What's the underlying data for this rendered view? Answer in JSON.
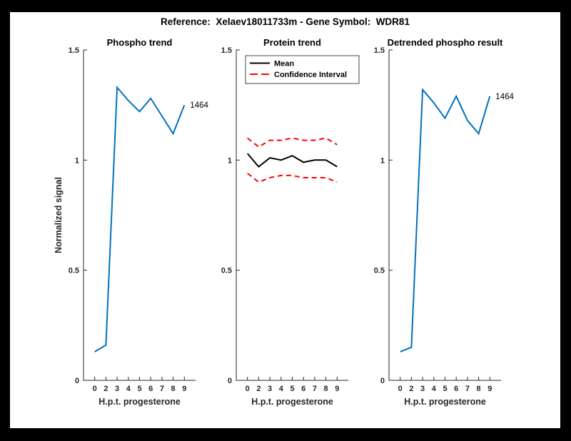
{
  "figure": {
    "title": "Reference:  Xelaev18011733m - Gene Symbol:  WDR81",
    "background_color": "#ffffff",
    "frame_color": "#000000",
    "axis_color": "#262626",
    "annotation_label": "1464"
  },
  "chart_data": [
    {
      "type": "line",
      "title": "Phospho trend",
      "xlabel": "H.p.t. progesterone",
      "ylabel": "Normalized signal",
      "x_tick_labels": [
        "0",
        "2",
        "3",
        "4",
        "5",
        "6",
        "7",
        "8",
        "9"
      ],
      "y_ticks": [
        "0",
        "0.5",
        "1",
        "1.5"
      ],
      "ylim": [
        0,
        1.5
      ],
      "grid": false,
      "series": [
        {
          "name": "phospho-signal",
          "color": "#0072BD",
          "style": "solid",
          "values": [
            0.13,
            0.16,
            1.33,
            1.27,
            1.22,
            1.28,
            1.2,
            1.12,
            1.25
          ]
        }
      ],
      "annotation": {
        "text": "1464"
      }
    },
    {
      "type": "line",
      "title": "Protein trend",
      "xlabel": "H.p.t. progesterone",
      "ylabel": "",
      "x_tick_labels": [
        "0",
        "2",
        "3",
        "4",
        "5",
        "6",
        "7",
        "8",
        "9"
      ],
      "y_ticks": [
        "0",
        "0.5",
        "1",
        "1.5"
      ],
      "ylim": [
        0,
        1.5
      ],
      "grid": false,
      "legend": {
        "position": "northwest",
        "entries": [
          "Mean",
          "Confidence Interval"
        ]
      },
      "series": [
        {
          "name": "mean",
          "color": "#000000",
          "style": "solid",
          "values": [
            1.03,
            0.97,
            1.01,
            1.0,
            1.02,
            0.99,
            1.0,
            1.0,
            0.97
          ]
        },
        {
          "name": "confidence-interval-upper",
          "color": "#FF0000",
          "style": "dashed",
          "values": [
            1.1,
            1.06,
            1.09,
            1.09,
            1.1,
            1.09,
            1.09,
            1.1,
            1.07
          ]
        },
        {
          "name": "confidence-interval-lower",
          "color": "#FF0000",
          "style": "dashed",
          "values": [
            0.94,
            0.9,
            0.92,
            0.93,
            0.93,
            0.92,
            0.92,
            0.92,
            0.9
          ]
        }
      ]
    },
    {
      "type": "line",
      "title": "Detrended phospho result",
      "xlabel": "H.p.t. progesterone",
      "ylabel": "",
      "x_tick_labels": [
        "0",
        "2",
        "3",
        "4",
        "5",
        "6",
        "7",
        "8",
        "9"
      ],
      "y_ticks": [
        "0",
        "0.5",
        "1",
        "1.5"
      ],
      "ylim": [
        0,
        1.5
      ],
      "grid": false,
      "series": [
        {
          "name": "detrended-phospho-signal",
          "color": "#0072BD",
          "style": "solid",
          "values": [
            0.13,
            0.15,
            1.32,
            1.26,
            1.19,
            1.29,
            1.18,
            1.12,
            1.29
          ]
        }
      ],
      "annotation": {
        "text": "1464"
      }
    }
  ]
}
